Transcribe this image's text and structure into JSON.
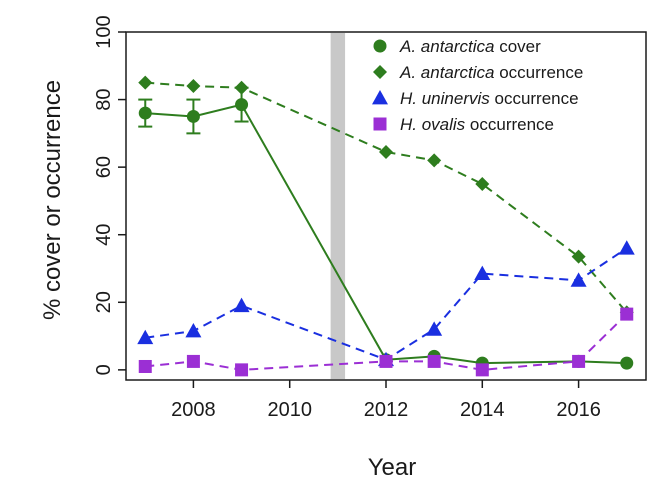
{
  "chart_data": {
    "type": "line",
    "xlabel": "Year",
    "ylabel": "% cover or occurrence",
    "xlim": [
      2006.6,
      2017.4
    ],
    "ylim": [
      -3,
      100
    ],
    "xticks": [
      2008,
      2010,
      2012,
      2014,
      2016
    ],
    "yticks": [
      0,
      20,
      40,
      60,
      80,
      100
    ],
    "grid": false,
    "legend_position": "top-right",
    "shaded_band": {
      "x": [
        2010.85,
        2011.15
      ],
      "color": "#c8c8c8"
    },
    "series": [
      {
        "name_italic": "A. antarctica",
        "name_suffix": " cover",
        "color": "#2e7d1e",
        "marker": "circle",
        "line_style": "solid",
        "x": [
          2007,
          2008,
          2009,
          2012,
          2013,
          2014,
          2016,
          2017
        ],
        "y": [
          76,
          75,
          78.5,
          3,
          4,
          2,
          2.5,
          2
        ],
        "error": [
          4,
          5,
          5,
          0,
          0,
          0,
          0,
          0
        ]
      },
      {
        "name_italic": "A. antarctica",
        "name_suffix": " occurrence",
        "color": "#2e7d1e",
        "marker": "diamond",
        "line_style": "dashed",
        "x": [
          2007,
          2008,
          2009,
          2012,
          2013,
          2014,
          2016,
          2017
        ],
        "y": [
          85,
          84,
          83.5,
          64.5,
          62,
          55,
          33.5,
          17
        ]
      },
      {
        "name_italic": "H. uninervis",
        "name_suffix": " occurrence",
        "color": "#1a2fe0",
        "marker": "triangle",
        "line_style": "dashed",
        "x": [
          2007,
          2008,
          2009,
          2012,
          2013,
          2014,
          2016,
          2017
        ],
        "y": [
          9.5,
          11.5,
          19,
          3,
          12,
          28.5,
          26.5,
          36
        ]
      },
      {
        "name_italic": "H. ovalis",
        "name_suffix": " occurrence",
        "color": "#9b2fd4",
        "marker": "square",
        "line_style": "dashed",
        "x": [
          2007,
          2008,
          2009,
          2012,
          2013,
          2014,
          2016,
          2017
        ],
        "y": [
          1,
          2.5,
          0,
          2.5,
          2.5,
          0,
          2.5,
          16.5
        ]
      }
    ]
  }
}
